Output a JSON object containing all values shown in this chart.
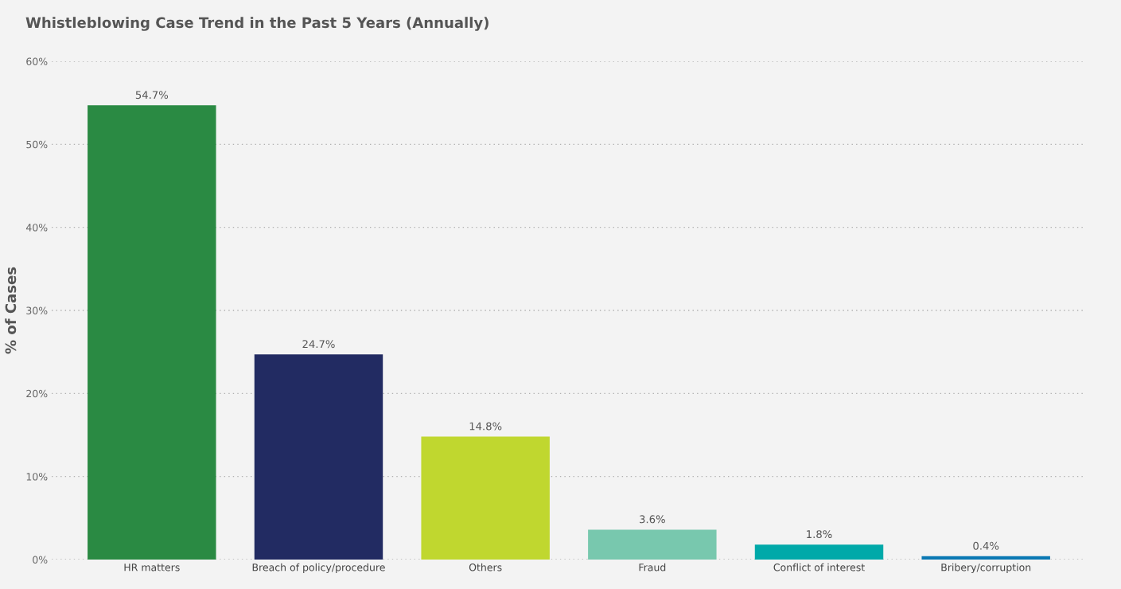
{
  "chart_data": {
    "type": "bar",
    "title": "Whistleblowing Case Trend in the Past 5 Years (Annually)",
    "ylabel": "% of Cases",
    "categories": [
      "HR matters",
      "Breach of policy/procedure",
      "Others",
      "Fraud",
      "Conflict of interest",
      "Bribery/corruption"
    ],
    "values": [
      54.7,
      24.7,
      14.8,
      3.6,
      1.8,
      0.4
    ],
    "colors": [
      "#2a8a43",
      "#222b62",
      "#c0d72f",
      "#78c8ae",
      "#00a9a9",
      "#0a78b3"
    ],
    "value_labels": [
      "54.7%",
      "24.7%",
      "14.8%",
      "3.6%",
      "1.8%",
      "0.4%"
    ],
    "ylim": [
      0,
      60
    ],
    "yticks": [
      {
        "value": 0,
        "label": "0%"
      },
      {
        "value": 10,
        "label": "10%"
      },
      {
        "value": 20,
        "label": "20%"
      },
      {
        "value": 30,
        "label": "30%"
      },
      {
        "value": 40,
        "label": "40%"
      },
      {
        "value": 50,
        "label": "50%"
      },
      {
        "value": 60,
        "label": "60%"
      }
    ],
    "grid": "y"
  }
}
